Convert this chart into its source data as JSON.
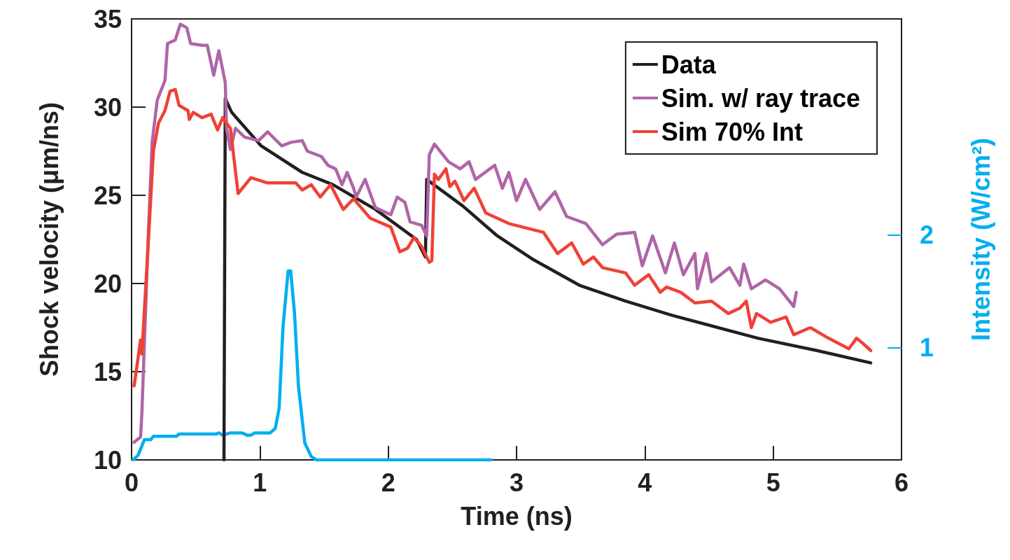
{
  "chart_data": {
    "type": "line",
    "xlabel": "Time (ns)",
    "ylabel": "Shock velocity (μm/ns)",
    "y2label": "Intensity (W/cm²)",
    "xlim": [
      0,
      6
    ],
    "xticks": [
      0,
      1,
      2,
      3,
      4,
      5,
      6
    ],
    "ylim": [
      10,
      35
    ],
    "yticks": [
      10,
      15,
      20,
      25,
      30,
      35
    ],
    "y2lim": [
      0,
      3.92
    ],
    "y2ticks": [
      1,
      2
    ],
    "grid": false,
    "legend": "top right",
    "marker": "none",
    "line_style": "solid",
    "series": [
      {
        "name": "Data",
        "color": "#231f20",
        "x": [
          0.72,
          0.73,
          0.78,
          1.01,
          1.33,
          1.57,
          1.9,
          2.22,
          2.29,
          2.3,
          2.58,
          2.85,
          3.12,
          3.49,
          3.85,
          4.21,
          4.88,
          5.34,
          5.76
        ],
        "values": [
          10,
          30.5,
          29.7,
          27.8,
          26.3,
          25.6,
          24.2,
          22.5,
          21.5,
          25.9,
          24.4,
          22.7,
          21.4,
          19.9,
          19.0,
          18.2,
          16.9,
          16.2,
          15.5
        ]
      },
      {
        "name": "Sim. w/ ray trace",
        "color": "#b065a8",
        "x": [
          0.02,
          0.07,
          0.08,
          0.13,
          0.16,
          0.2,
          0.26,
          0.28,
          0.34,
          0.38,
          0.43,
          0.46,
          0.55,
          0.59,
          0.64,
          0.68,
          0.73,
          0.74,
          0.77,
          0.81,
          0.88,
          0.99,
          1.06,
          1.17,
          1.24,
          1.33,
          1.37,
          1.48,
          1.53,
          1.59,
          1.64,
          1.68,
          1.73,
          1.75,
          1.82,
          1.86,
          1.9,
          2.02,
          2.07,
          2.13,
          2.17,
          2.26,
          2.3,
          2.32,
          2.36,
          2.47,
          2.56,
          2.63,
          2.68,
          2.83,
          2.89,
          2.94,
          3.0,
          3.07,
          3.18,
          3.3,
          3.39,
          3.54,
          3.67,
          3.78,
          3.92,
          3.98,
          4.06,
          4.16,
          4.23,
          4.3,
          4.39,
          4.41,
          4.48,
          4.52,
          4.66,
          4.74,
          4.77,
          4.83,
          4.94,
          5.05,
          5.16,
          5.18
        ],
        "values": [
          11.0,
          11.3,
          12.6,
          22.7,
          28.0,
          30.4,
          31.5,
          33.6,
          33.8,
          34.7,
          34.5,
          33.6,
          33.5,
          33.5,
          31.8,
          33.2,
          31.4,
          28.8,
          27.6,
          28.8,
          28.3,
          28.1,
          28.6,
          27.8,
          28.0,
          28.1,
          27.5,
          27.2,
          26.7,
          26.5,
          25.6,
          26.3,
          25.4,
          24.9,
          25.9,
          25.1,
          24.3,
          23.9,
          24.9,
          24.6,
          23.5,
          23.3,
          22.7,
          27.3,
          27.9,
          26.9,
          26.5,
          26.9,
          25.9,
          26.7,
          25.4,
          26.3,
          24.7,
          25.9,
          24.2,
          25.2,
          23.8,
          23.4,
          22.2,
          22.8,
          22.9,
          21.0,
          22.7,
          20.6,
          22.3,
          20.5,
          21.7,
          19.7,
          21.7,
          20.1,
          20.9,
          19.9,
          21.1,
          19.7,
          20.2,
          19.7,
          18.7,
          19.5
        ]
      },
      {
        "name": "Sim 70% Int",
        "color": "#ef4136",
        "x": [
          0.02,
          0.07,
          0.08,
          0.13,
          0.17,
          0.21,
          0.26,
          0.3,
          0.34,
          0.37,
          0.44,
          0.45,
          0.48,
          0.55,
          0.62,
          0.67,
          0.71,
          0.77,
          0.83,
          0.93,
          1.06,
          1.28,
          1.33,
          1.4,
          1.47,
          1.55,
          1.65,
          1.73,
          1.86,
          2.02,
          2.09,
          2.15,
          2.2,
          2.26,
          2.32,
          2.34,
          2.36,
          2.39,
          2.45,
          2.48,
          2.52,
          2.59,
          2.67,
          2.76,
          2.94,
          3.21,
          3.32,
          3.43,
          3.52,
          3.6,
          3.67,
          3.85,
          3.92,
          4.03,
          4.12,
          4.17,
          4.28,
          4.39,
          4.52,
          4.65,
          4.74,
          4.79,
          4.83,
          4.87,
          4.98,
          5.1,
          5.16,
          5.29,
          5.43,
          5.59,
          5.65,
          5.7,
          5.76
        ],
        "values": [
          14.2,
          16.8,
          16.0,
          22.3,
          27.5,
          29.1,
          29.8,
          30.9,
          31.0,
          30.1,
          29.8,
          29.3,
          29.7,
          29.4,
          29.6,
          28.7,
          29.4,
          28.8,
          25.1,
          26.0,
          25.7,
          25.7,
          25.3,
          25.6,
          24.9,
          25.6,
          24.2,
          24.8,
          23.7,
          23.2,
          21.8,
          22.0,
          22.6,
          22.1,
          21.2,
          21.3,
          26.2,
          25.9,
          26.5,
          25.5,
          25.8,
          24.7,
          25.4,
          24.0,
          23.4,
          22.9,
          21.7,
          22.3,
          21.1,
          21.5,
          20.9,
          20.6,
          19.9,
          20.5,
          19.5,
          19.8,
          19.5,
          18.9,
          19.0,
          18.3,
          18.6,
          19.0,
          17.5,
          18.3,
          17.8,
          18.1,
          17.1,
          17.5,
          16.9,
          16.3,
          16.9,
          16.6,
          16.2
        ]
      },
      {
        "color": "#00aeef",
        "axis": "y2",
        "x": [
          0.01,
          0.05,
          0.1,
          0.15,
          0.17,
          0.35,
          0.37,
          0.66,
          0.68,
          0.71,
          0.77,
          0.86,
          0.9,
          0.93,
          0.96,
          1.08,
          1.12,
          1.15,
          1.18,
          1.22,
          1.24,
          1.27,
          1.3,
          1.35,
          1.4,
          1.44,
          2.8
        ],
        "values": [
          0,
          0.04,
          0.18,
          0.18,
          0.21,
          0.21,
          0.23,
          0.23,
          0.24,
          0.22,
          0.24,
          0.24,
          0.22,
          0.22,
          0.24,
          0.24,
          0.28,
          0.46,
          1.18,
          1.68,
          1.68,
          1.3,
          0.66,
          0.15,
          0.03,
          0,
          0
        ]
      }
    ]
  }
}
